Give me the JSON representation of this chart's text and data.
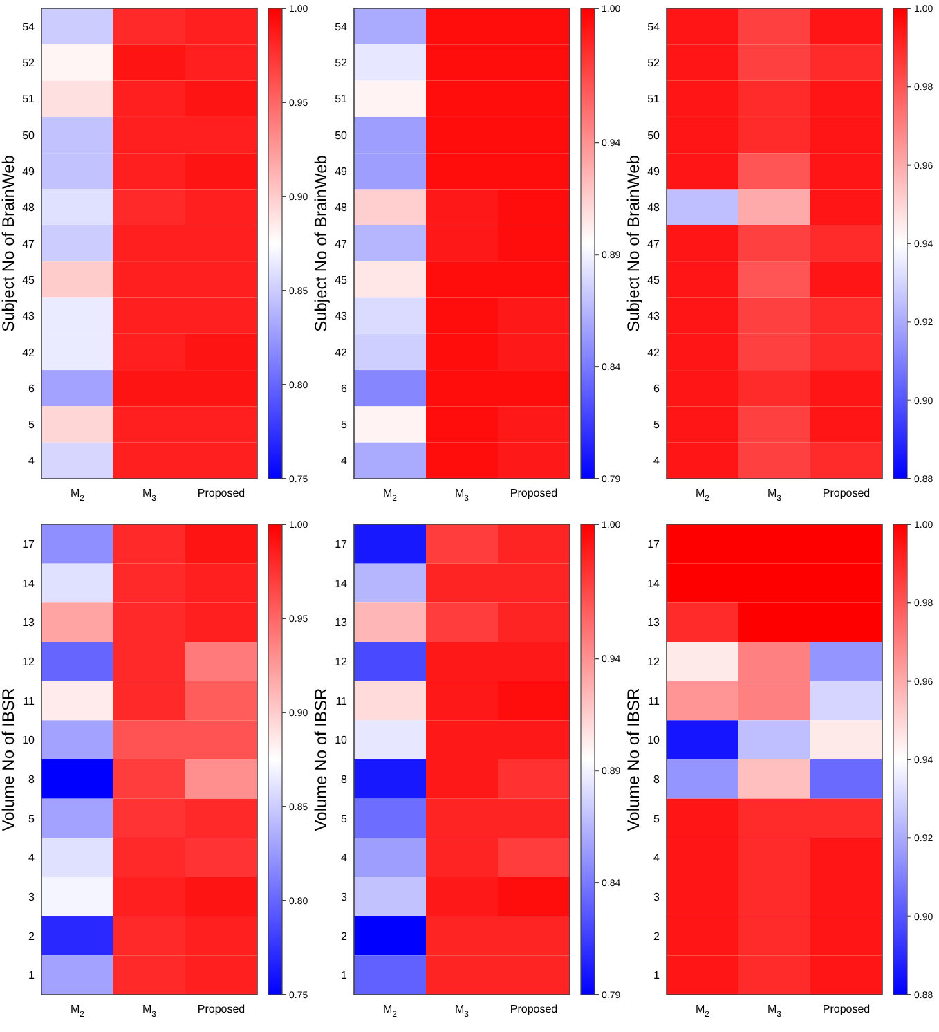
{
  "chart_data": [
    {
      "type": "heatmap",
      "ylabel": "Subject No of BrainWeb",
      "categories": [
        "M$_{2}$",
        "M$_{3}$",
        "Proposed"
      ],
      "y_categories": [
        "54",
        "52",
        "51",
        "50",
        "49",
        "48",
        "47",
        "45",
        "43",
        "42",
        "6",
        "5",
        "4"
      ],
      "clim": [
        0.75,
        1.0
      ],
      "cticks": [
        0.75,
        {
          "value": 0.8,
          "label": "0.80"
        },
        0.85,
        {
          "value": 0.9,
          "label": "0.90"
        },
        0.95,
        {
          "value": 1.0,
          "label": "1.00"
        }
      ],
      "cells": [
        [
          0.85,
          0.98,
          0.985
        ],
        [
          0.88,
          0.99,
          0.985
        ],
        [
          0.89,
          0.985,
          0.99
        ],
        [
          0.845,
          0.985,
          0.985
        ],
        [
          0.845,
          0.985,
          0.99
        ],
        [
          0.86,
          0.98,
          0.985
        ],
        [
          0.85,
          0.985,
          0.985
        ],
        [
          0.9,
          0.985,
          0.985
        ],
        [
          0.865,
          0.985,
          0.985
        ],
        [
          0.865,
          0.985,
          0.99
        ],
        [
          0.83,
          0.99,
          0.99
        ],
        [
          0.895,
          0.985,
          0.985
        ],
        [
          0.855,
          0.985,
          0.985
        ]
      ]
    },
    {
      "type": "heatmap",
      "ylabel": "Subject No of BrainWeb",
      "categories": [
        "M$_{2}$",
        "M$_{3}$",
        "Proposed"
      ],
      "y_categories": [
        "54",
        "52",
        "51",
        "50",
        "49",
        "48",
        "47",
        "45",
        "43",
        "42",
        "6",
        "5",
        "4"
      ],
      "clim": [
        0.79,
        1.0
      ],
      "cticks": [
        0.79,
        0.84,
        0.89,
        0.94,
        {
          "value": 1.0,
          "label": "1.00"
        }
      ],
      "cells": [
        [
          0.86,
          0.995,
          0.995
        ],
        [
          0.885,
          0.995,
          0.995
        ],
        [
          0.9,
          0.995,
          0.995
        ],
        [
          0.855,
          0.995,
          0.995
        ],
        [
          0.855,
          0.995,
          0.995
        ],
        [
          0.915,
          0.99,
          0.995
        ],
        [
          0.865,
          0.99,
          0.995
        ],
        [
          0.905,
          0.995,
          0.995
        ],
        [
          0.88,
          0.995,
          0.99
        ],
        [
          0.875,
          0.995,
          0.99
        ],
        [
          0.845,
          0.995,
          0.995
        ],
        [
          0.9,
          0.995,
          0.99
        ],
        [
          0.86,
          0.995,
          0.99
        ]
      ]
    },
    {
      "type": "heatmap",
      "ylabel": "Subject No of BrainWeb",
      "categories": [
        "M$_{2}$",
        "M$_{3}$",
        "Proposed"
      ],
      "y_categories": [
        "54",
        "52",
        "51",
        "50",
        "49",
        "48",
        "47",
        "45",
        "43",
        "42",
        "6",
        "5",
        "4"
      ],
      "clim": [
        0.88,
        1.0
      ],
      "cticks": [
        0.88,
        {
          "value": 0.9,
          "label": "0.90"
        },
        0.92,
        0.94,
        0.96,
        0.98,
        {
          "value": 1.0,
          "label": "1.00"
        }
      ],
      "cells": [
        [
          0.995,
          0.985,
          0.995
        ],
        [
          0.995,
          0.985,
          0.99
        ],
        [
          0.995,
          0.99,
          0.995
        ],
        [
          0.995,
          0.99,
          0.995
        ],
        [
          0.995,
          0.98,
          0.995
        ],
        [
          0.925,
          0.96,
          0.995
        ],
        [
          0.995,
          0.985,
          0.99
        ],
        [
          0.995,
          0.98,
          0.995
        ],
        [
          0.995,
          0.985,
          0.99
        ],
        [
          0.995,
          0.985,
          0.99
        ],
        [
          0.995,
          0.99,
          0.995
        ],
        [
          0.995,
          0.985,
          0.995
        ],
        [
          0.995,
          0.985,
          0.99
        ]
      ]
    },
    {
      "type": "heatmap",
      "ylabel": "Volume No of IBSR",
      "categories": [
        "M$_{2}$",
        "M$_{3}$",
        "Proposed"
      ],
      "y_categories": [
        "17",
        "14",
        "13",
        "12",
        "11",
        "10",
        "8",
        "5",
        "4",
        "3",
        "2",
        "1"
      ],
      "clim": [
        0.75,
        1.0
      ],
      "cticks": [
        0.75,
        {
          "value": 0.8,
          "label": "0.80"
        },
        0.85,
        {
          "value": 0.9,
          "label": "0.90"
        },
        0.95,
        {
          "value": 1.0,
          "label": "1.00"
        }
      ],
      "cells": [
        [
          0.82,
          0.98,
          0.99
        ],
        [
          0.86,
          0.98,
          0.985
        ],
        [
          0.92,
          0.98,
          0.985
        ],
        [
          0.8,
          0.98,
          0.94
        ],
        [
          0.885,
          0.98,
          0.955
        ],
        [
          0.83,
          0.96,
          0.96
        ],
        [
          0.75,
          0.97,
          0.93
        ],
        [
          0.83,
          0.975,
          0.98
        ],
        [
          0.86,
          0.98,
          0.975
        ],
        [
          0.87,
          0.985,
          0.99
        ],
        [
          0.77,
          0.98,
          0.985
        ],
        [
          0.83,
          0.98,
          0.985
        ]
      ]
    },
    {
      "type": "heatmap",
      "ylabel": "Volume No of IBSR",
      "categories": [
        "M$_{2}$",
        "M$_{3}$",
        "Proposed"
      ],
      "y_categories": [
        "17",
        "14",
        "13",
        "12",
        "11",
        "10",
        "8",
        "5",
        "4",
        "3",
        "2",
        "1"
      ],
      "clim": [
        0.79,
        1.0
      ],
      "cticks": [
        0.79,
        0.84,
        0.89,
        0.94,
        {
          "value": 1.0,
          "label": "1.00"
        }
      ],
      "cells": [
        [
          0.8,
          0.975,
          0.985
        ],
        [
          0.865,
          0.985,
          0.985
        ],
        [
          0.925,
          0.975,
          0.985
        ],
        [
          0.82,
          0.99,
          0.99
        ],
        [
          0.91,
          0.99,
          0.995
        ],
        [
          0.885,
          0.99,
          0.99
        ],
        [
          0.8,
          0.99,
          0.98
        ],
        [
          0.835,
          0.985,
          0.985
        ],
        [
          0.855,
          0.985,
          0.975
        ],
        [
          0.87,
          0.99,
          0.995
        ],
        [
          0.79,
          0.985,
          0.985
        ],
        [
          0.83,
          0.985,
          0.985
        ]
      ]
    },
    {
      "type": "heatmap",
      "ylabel": "Volume No of IBSR",
      "categories": [
        "M$_{2}$",
        "M$_{3}$",
        "Proposed"
      ],
      "y_categories": [
        "17",
        "14",
        "13",
        "12",
        "11",
        "10",
        "8",
        "5",
        "4",
        "3",
        "2",
        "1"
      ],
      "clim": [
        0.88,
        1.0
      ],
      "cticks": [
        0.88,
        {
          "value": 0.9,
          "label": "0.90"
        },
        0.92,
        0.94,
        0.96,
        0.98,
        {
          "value": 1.0,
          "label": "1.00"
        }
      ],
      "cells": [
        [
          1.0,
          1.0,
          1.0
        ],
        [
          1.0,
          1.0,
          1.0
        ],
        [
          0.99,
          1.0,
          1.0
        ],
        [
          0.945,
          0.97,
          0.915
        ],
        [
          0.965,
          0.97,
          0.93
        ],
        [
          0.885,
          0.925,
          0.945
        ],
        [
          0.915,
          0.955,
          0.905
        ],
        [
          0.995,
          0.99,
          0.99
        ],
        [
          0.995,
          0.99,
          0.995
        ],
        [
          0.995,
          0.99,
          0.995
        ],
        [
          0.995,
          0.99,
          0.995
        ],
        [
          0.995,
          0.99,
          0.995
        ]
      ]
    }
  ]
}
